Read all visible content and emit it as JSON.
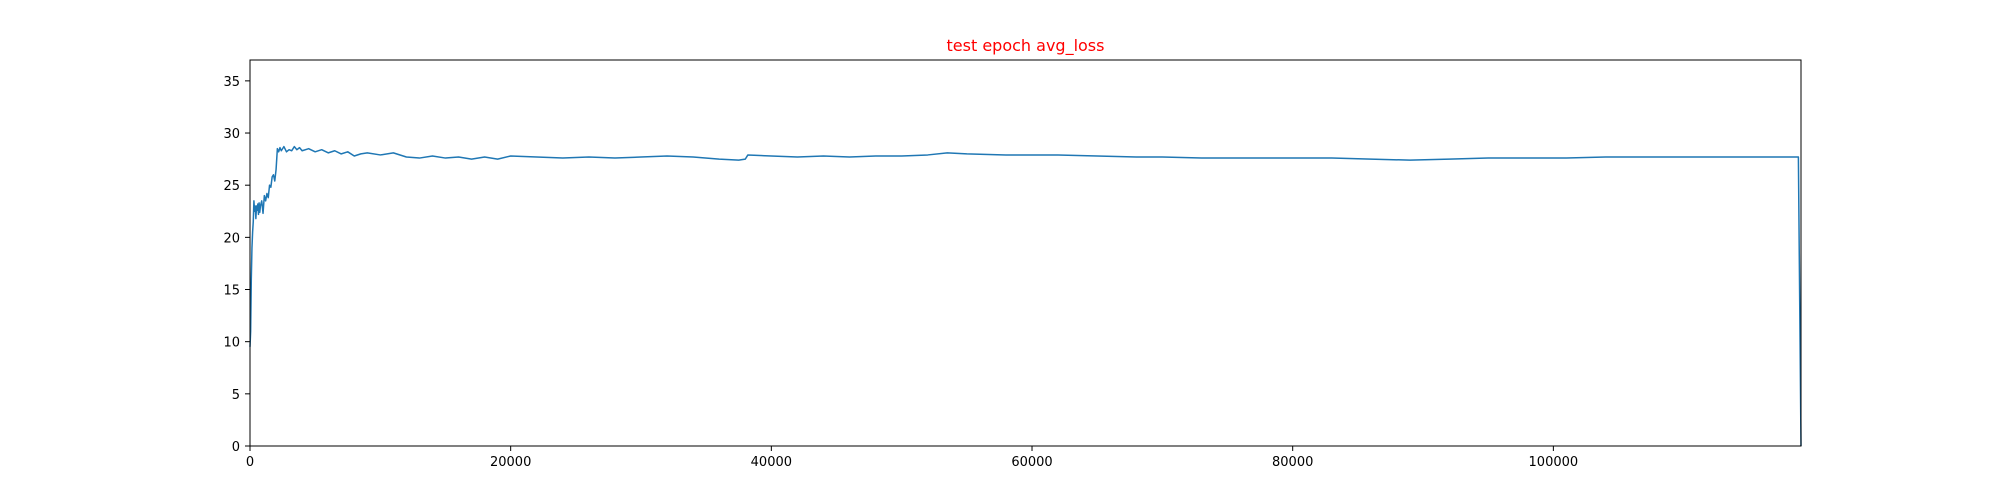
{
  "chart_data": {
    "type": "line",
    "title": "test epoch avg_loss",
    "xlabel": "",
    "ylabel": "",
    "xlim": [
      0,
      119000
    ],
    "ylim": [
      0,
      37
    ],
    "xticks": [
      0,
      20000,
      40000,
      60000,
      80000,
      100000
    ],
    "xtick_labels": [
      "0",
      "20000",
      "40000",
      "60000",
      "80000",
      "100000"
    ],
    "yticks": [
      0,
      5,
      10,
      15,
      20,
      25,
      30,
      35
    ],
    "ytick_labels": [
      "0",
      "5",
      "10",
      "15",
      "20",
      "25",
      "30",
      "35"
    ],
    "grid": false,
    "series": [
      {
        "color": "#1f77b4",
        "x": [
          0,
          50,
          100,
          150,
          200,
          250,
          300,
          350,
          400,
          450,
          500,
          550,
          600,
          650,
          700,
          750,
          800,
          900,
          1000,
          1100,
          1200,
          1300,
          1400,
          1500,
          1600,
          1700,
          1800,
          1900,
          2000,
          2100,
          2200,
          2300,
          2400,
          2600,
          2800,
          3000,
          3200,
          3400,
          3600,
          3800,
          4000,
          4500,
          5000,
          5500,
          6000,
          6500,
          7000,
          7500,
          8000,
          8500,
          9000,
          10000,
          11000,
          12000,
          13000,
          14000,
          15000,
          16000,
          17000,
          18000,
          19000,
          20000,
          22000,
          24000,
          26000,
          28000,
          30000,
          32000,
          34000,
          36000,
          37500,
          38000,
          38200,
          40000,
          42000,
          44000,
          46000,
          48000,
          50000,
          52000,
          53500,
          55000,
          58000,
          60000,
          62000,
          65000,
          68000,
          70000,
          73000,
          76000,
          80000,
          83000,
          86000,
          89000,
          92000,
          95000,
          98000,
          101000,
          104000,
          108000,
          112000,
          116000,
          118800,
          119000
        ],
        "values": [
          9.5,
          11,
          16,
          19,
          20.5,
          21.5,
          23.5,
          22.5,
          23,
          21.8,
          23,
          22.6,
          23.2,
          22.2,
          23.3,
          22.4,
          23,
          23.5,
          22.3,
          24,
          23.5,
          24.2,
          23.8,
          25,
          24.8,
          25.8,
          26,
          25.4,
          26.5,
          28.5,
          28.2,
          28.6,
          28.3,
          28.7,
          28.2,
          28.4,
          28.3,
          28.7,
          28.4,
          28.6,
          28.3,
          28.5,
          28.2,
          28.4,
          28.1,
          28.3,
          28.0,
          28.2,
          27.8,
          28.0,
          28.1,
          27.9,
          28.1,
          27.7,
          27.6,
          27.8,
          27.6,
          27.7,
          27.5,
          27.7,
          27.5,
          27.8,
          27.7,
          27.6,
          27.7,
          27.6,
          27.7,
          27.8,
          27.7,
          27.5,
          27.4,
          27.5,
          27.9,
          27.8,
          27.7,
          27.8,
          27.7,
          27.8,
          27.8,
          27.9,
          28.1,
          28.0,
          27.9,
          27.9,
          27.9,
          27.8,
          27.7,
          27.7,
          27.6,
          27.6,
          27.6,
          27.6,
          27.5,
          27.4,
          27.5,
          27.6,
          27.6,
          27.6,
          27.7,
          27.7,
          27.7,
          27.7,
          27.7,
          0
        ]
      }
    ]
  }
}
